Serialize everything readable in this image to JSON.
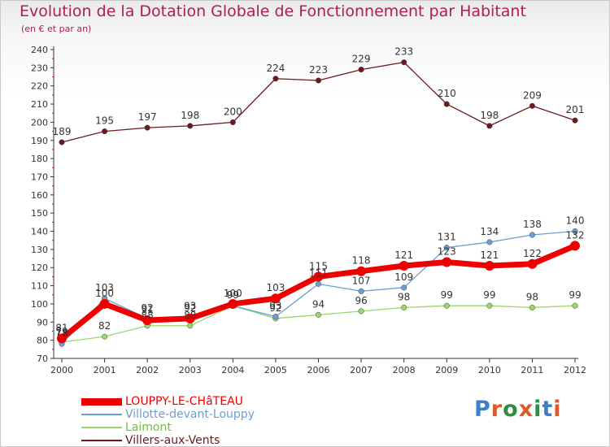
{
  "header": {
    "title": "Evolution de la Dotation Globale de Fonctionnement par Habitant",
    "subtitle": "(en € et par an)"
  },
  "logo": {
    "text": "Proxiti",
    "colors": [
      "#3a7fc7",
      "#e0592a",
      "#2e8f43",
      "#e0592a",
      "#2e8f43",
      "#3a7fc7",
      "#e0592a"
    ]
  },
  "colors": {
    "title": "#b01c58",
    "axis": "#333333",
    "grid_tick": "#cc1144"
  },
  "chart_data": {
    "type": "line",
    "title": "Evolution de la Dotation Globale de Fonctionnement par Habitant",
    "subtitle": "(en € et par an)",
    "x": [
      "2000",
      "2001",
      "2002",
      "2003",
      "2004",
      "2005",
      "2006",
      "2007",
      "2008",
      "2009",
      "2010",
      "2011",
      "2012"
    ],
    "ylim": [
      70,
      240
    ],
    "yticks": [
      70,
      80,
      90,
      100,
      110,
      120,
      130,
      140,
      150,
      160,
      170,
      180,
      190,
      200,
      210,
      220,
      230,
      240
    ],
    "grid": false,
    "legend_position": "bottom-left",
    "series": [
      {
        "name": "Villers-aux-Vents",
        "color": "#6b1a1f",
        "values": [
          189,
          195,
          197,
          198,
          200,
          224,
          223,
          229,
          233,
          210,
          198,
          209,
          201
        ]
      },
      {
        "name": "Laimont",
        "color": "#99d66b",
        "values": [
          79,
          82,
          88,
          88,
          99,
          92,
          94,
          96,
          98,
          99,
          99,
          98,
          99
        ]
      },
      {
        "name": "Villotte-devant-Louppy",
        "color": "#6b9fd0",
        "values": [
          78,
          103,
          92,
          93,
          99,
          93,
          111,
          107,
          109,
          131,
          134,
          138,
          140
        ]
      },
      {
        "name": "LOUPPY-LE-CHâTEAU",
        "color": "#ee0000",
        "values": [
          81,
          100,
          91,
          92,
          100,
          103,
          115,
          118,
          121,
          123,
          121,
          122,
          132
        ]
      }
    ]
  }
}
